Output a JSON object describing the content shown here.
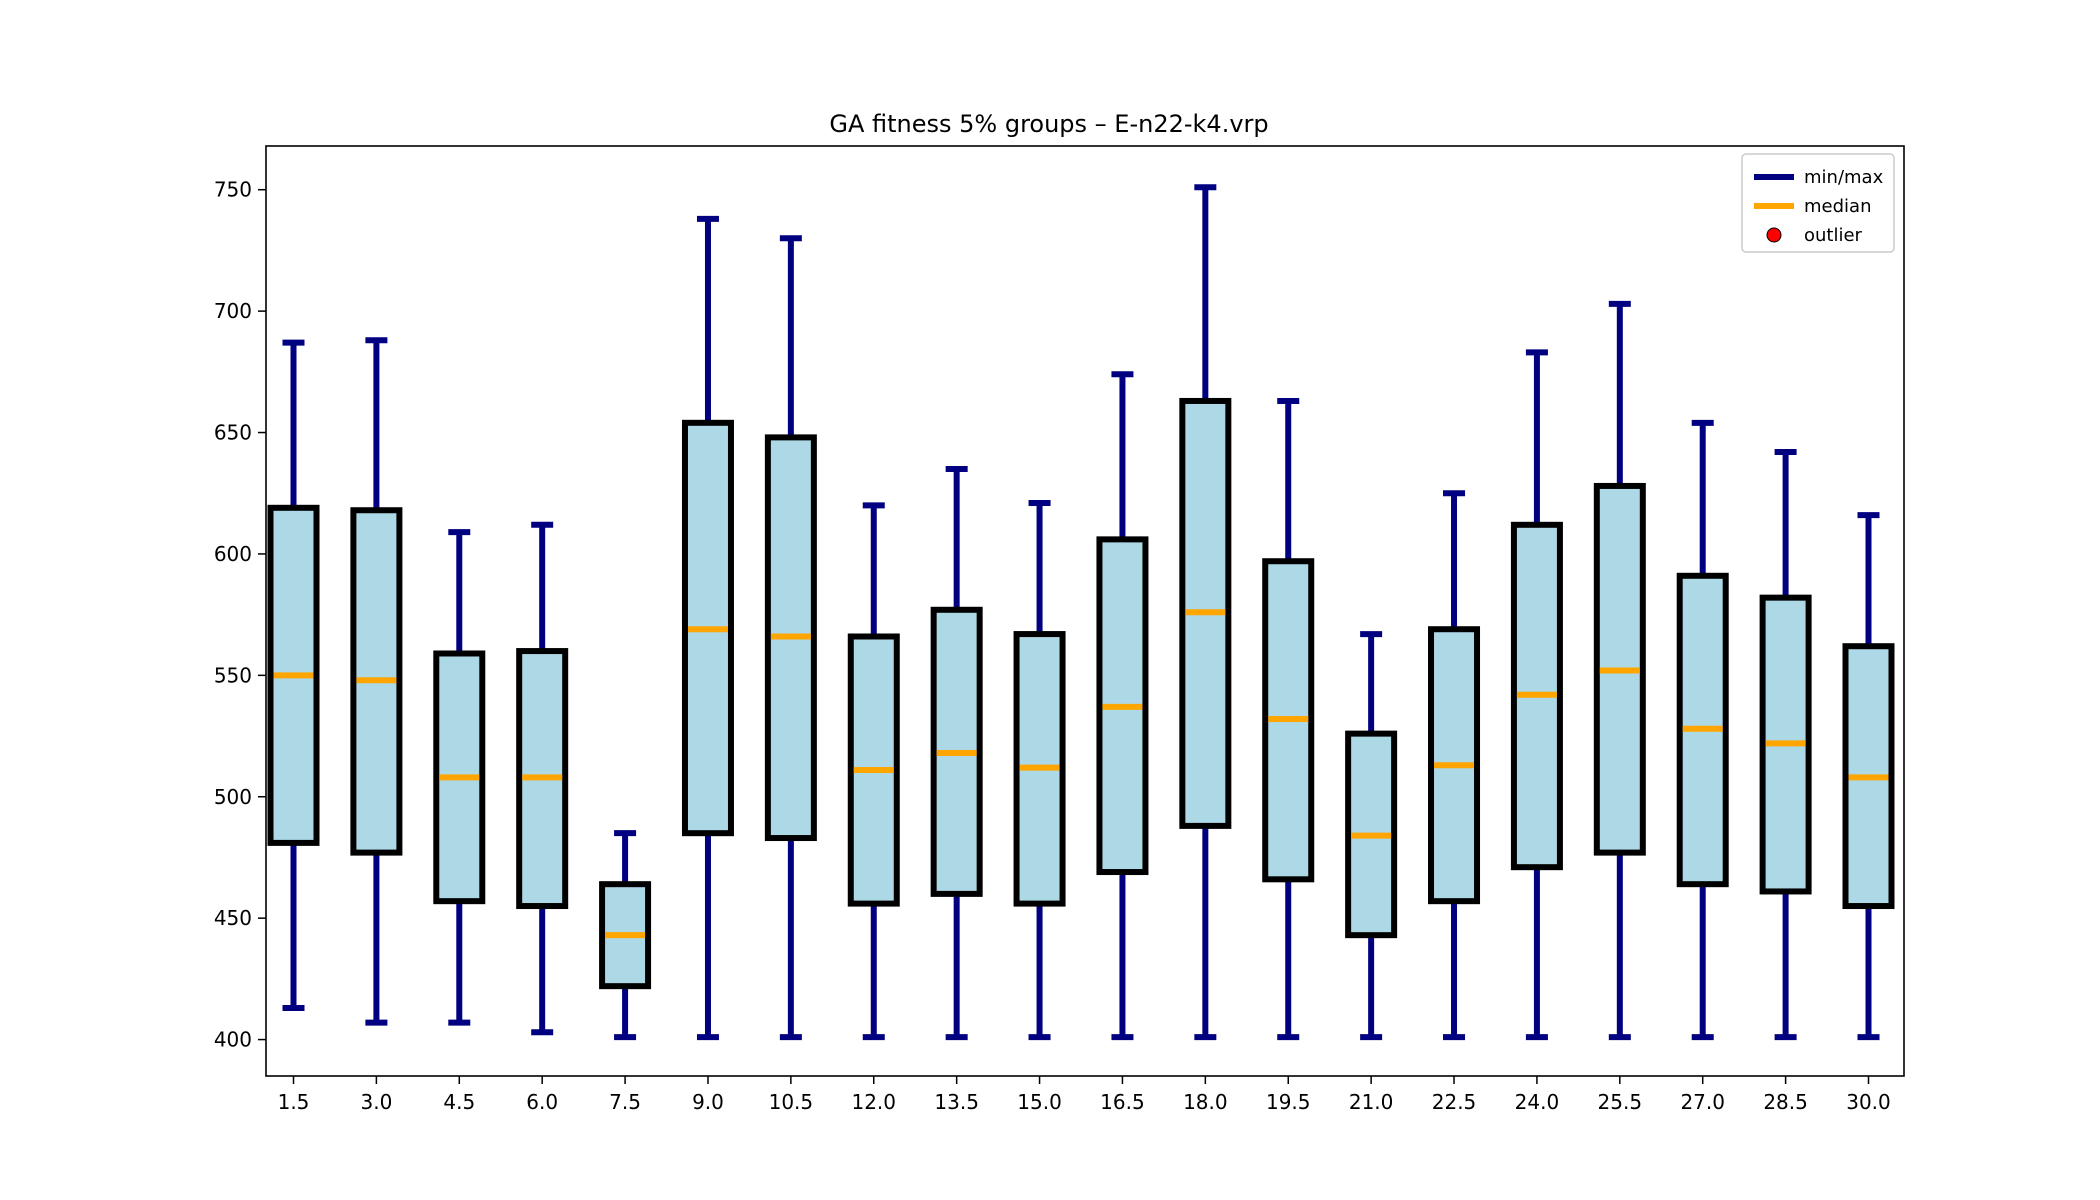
{
  "chart_data": {
    "type": "boxplot",
    "title": "GA fitness 5% groups – E-n22-k4.vrp",
    "xlabel": "",
    "ylabel": "",
    "categories": [
      "1.5",
      "3.0",
      "4.5",
      "6.0",
      "7.5",
      "9.0",
      "10.5",
      "12.0",
      "13.5",
      "15.0",
      "16.5",
      "18.0",
      "19.5",
      "21.0",
      "22.5",
      "24.0",
      "25.5",
      "27.0",
      "28.5",
      "30.0"
    ],
    "yticks": [
      400,
      450,
      500,
      550,
      600,
      650,
      700,
      750
    ],
    "ylim": [
      385,
      768
    ],
    "boxes": [
      {
        "min": 413,
        "q1": 481,
        "median": 550,
        "q3": 619,
        "max": 687
      },
      {
        "min": 407,
        "q1": 477,
        "median": 548,
        "q3": 618,
        "max": 688
      },
      {
        "min": 407,
        "q1": 457,
        "median": 508,
        "q3": 559,
        "max": 609
      },
      {
        "min": 403,
        "q1": 455,
        "median": 508,
        "q3": 560,
        "max": 612
      },
      {
        "min": 401,
        "q1": 422,
        "median": 443,
        "q3": 464,
        "max": 485
      },
      {
        "min": 401,
        "q1": 485,
        "median": 569,
        "q3": 654,
        "max": 738
      },
      {
        "min": 401,
        "q1": 483,
        "median": 566,
        "q3": 648,
        "max": 730
      },
      {
        "min": 401,
        "q1": 456,
        "median": 511,
        "q3": 566,
        "max": 620
      },
      {
        "min": 401,
        "q1": 460,
        "median": 518,
        "q3": 577,
        "max": 635
      },
      {
        "min": 401,
        "q1": 456,
        "median": 512,
        "q3": 567,
        "max": 621
      },
      {
        "min": 401,
        "q1": 469,
        "median": 537,
        "q3": 606,
        "max": 674
      },
      {
        "min": 401,
        "q1": 488,
        "median": 576,
        "q3": 663,
        "max": 751
      },
      {
        "min": 401,
        "q1": 466,
        "median": 532,
        "q3": 597,
        "max": 663
      },
      {
        "min": 401,
        "q1": 443,
        "median": 484,
        "q3": 526,
        "max": 567
      },
      {
        "min": 401,
        "q1": 457,
        "median": 513,
        "q3": 569,
        "max": 625
      },
      {
        "min": 401,
        "q1": 471,
        "median": 542,
        "q3": 612,
        "max": 683
      },
      {
        "min": 401,
        "q1": 477,
        "median": 552,
        "q3": 628,
        "max": 703
      },
      {
        "min": 401,
        "q1": 464,
        "median": 528,
        "q3": 591,
        "max": 654
      },
      {
        "min": 401,
        "q1": 461,
        "median": 522,
        "q3": 582,
        "max": 642
      },
      {
        "min": 401,
        "q1": 455,
        "median": 508,
        "q3": 562,
        "max": 616
      }
    ],
    "outliers": [],
    "legend": {
      "placement": "top-right",
      "entries": [
        {
          "label": "min/max",
          "kind": "line",
          "color": "#000080"
        },
        {
          "label": "median",
          "kind": "line",
          "color": "#ffa500"
        },
        {
          "label": "outlier",
          "kind": "marker",
          "color": "#ff0000"
        }
      ]
    },
    "colors": {
      "box_fill": "#add8e6",
      "box_edge": "#000000",
      "whisker": "#000080",
      "median": "#ffa500",
      "outlier": "#ff0000"
    },
    "grid": false
  }
}
